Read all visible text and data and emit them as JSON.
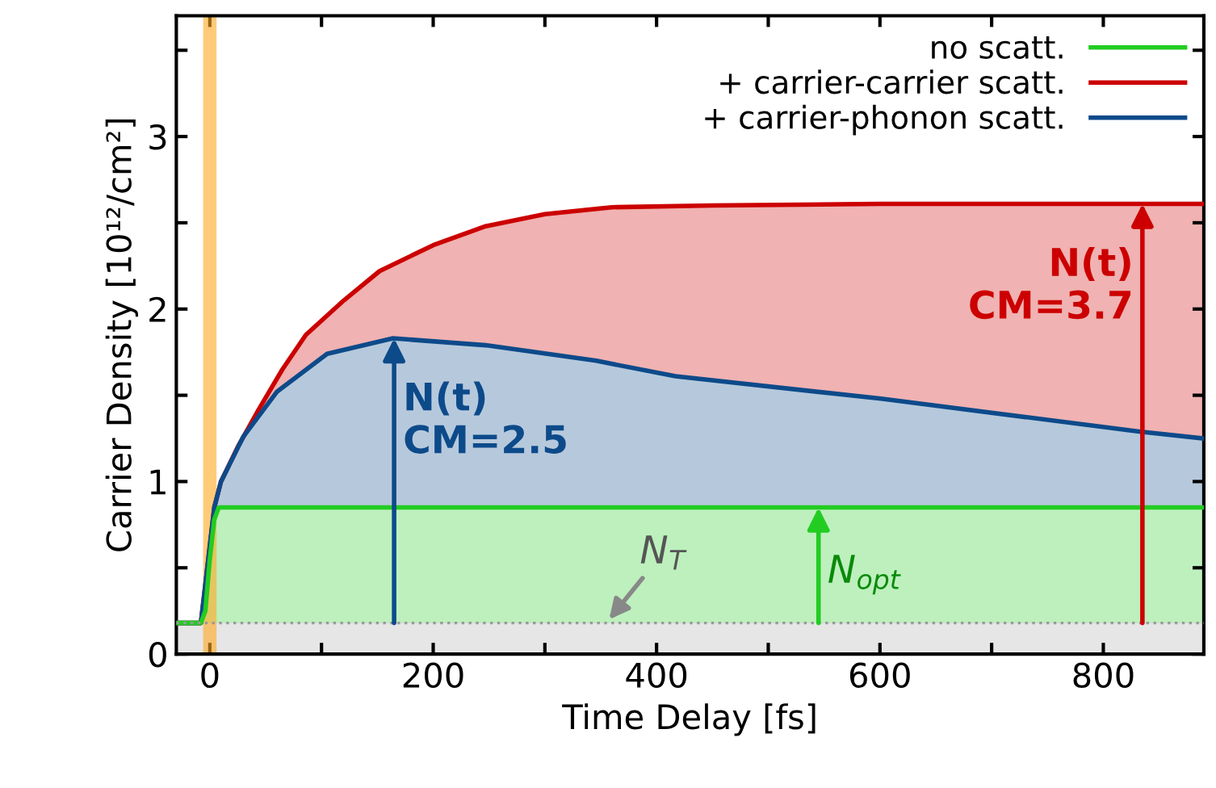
{
  "chart_data": {
    "type": "line",
    "xlabel": "Time Delay [fs]",
    "ylabel": "Carrier Density [10¹²/cm²]",
    "xlim": [
      -30,
      890
    ],
    "ylim": [
      0,
      3.7
    ],
    "xticks": [
      0,
      {
        "value": 100,
        "label": null
      },
      200,
      {
        "value": 300,
        "label": null
      },
      400,
      {
        "value": 500,
        "label": null
      },
      600,
      {
        "value": 700,
        "label": null
      },
      800
    ],
    "yticks": [
      0,
      {
        "value": 0.5,
        "label": null
      },
      1,
      {
        "value": 1.5,
        "label": null
      },
      2,
      {
        "value": 2.5,
        "label": null
      },
      3,
      {
        "value": 3.5,
        "label": null
      }
    ],
    "grid": false,
    "legend": "top right",
    "series": [
      {
        "name": "+ carrier-carrier scatt.",
        "color": "#cc0000",
        "type": "area",
        "x": [
          -30,
          -8,
          4,
          10,
          25,
          44,
          65,
          86,
          120,
          152,
          200,
          247,
          300,
          360,
          450,
          600,
          889
        ],
        "values": [
          0.18,
          0.18,
          0.85,
          1.0,
          1.2,
          1.42,
          1.65,
          1.85,
          2.05,
          2.22,
          2.37,
          2.48,
          2.55,
          2.59,
          2.6,
          2.61,
          2.61
        ]
      },
      {
        "name": "+ carrier-phonon scatt.",
        "color": "#0d4a8a",
        "type": "area",
        "x": [
          -30,
          -8,
          4,
          10,
          30,
          60,
          105,
          164,
          247,
          346,
          417,
          601,
          832,
          889
        ],
        "values": [
          0.18,
          0.18,
          0.85,
          1.0,
          1.26,
          1.52,
          1.74,
          1.83,
          1.79,
          1.7,
          1.61,
          1.48,
          1.29,
          1.25
        ]
      },
      {
        "name": "no scatt.",
        "color": "#22cc22",
        "type": "area",
        "x": [
          -30,
          -8,
          -4,
          0,
          4,
          8,
          889
        ],
        "values": [
          0.18,
          0.18,
          0.25,
          0.55,
          0.78,
          0.85,
          0.85
        ]
      }
    ],
    "ref_lines": [
      {
        "axis": "y",
        "value": 0.18,
        "color": "#999999",
        "line_style": "dotted"
      }
    ],
    "bands": [
      {
        "axis": "y",
        "from": 0,
        "to": 0.18,
        "color": "#e6e6e6"
      },
      {
        "axis": "x",
        "from": -6,
        "to": 6,
        "color": "#ffa820"
      }
    ],
    "annotations": [
      {
        "text": "N$_{T}$",
        "x": 355,
        "y": 0.18
      },
      {
        "text": "N$_{opt}$",
        "x": 545,
        "y": 0.85
      },
      {
        "text": "N(t)\nCM=2.5",
        "x": 165,
        "y": 1.83
      },
      {
        "text": "N(t)\nCM=3.7",
        "x": 835,
        "y": 2.61
      }
    ]
  }
}
